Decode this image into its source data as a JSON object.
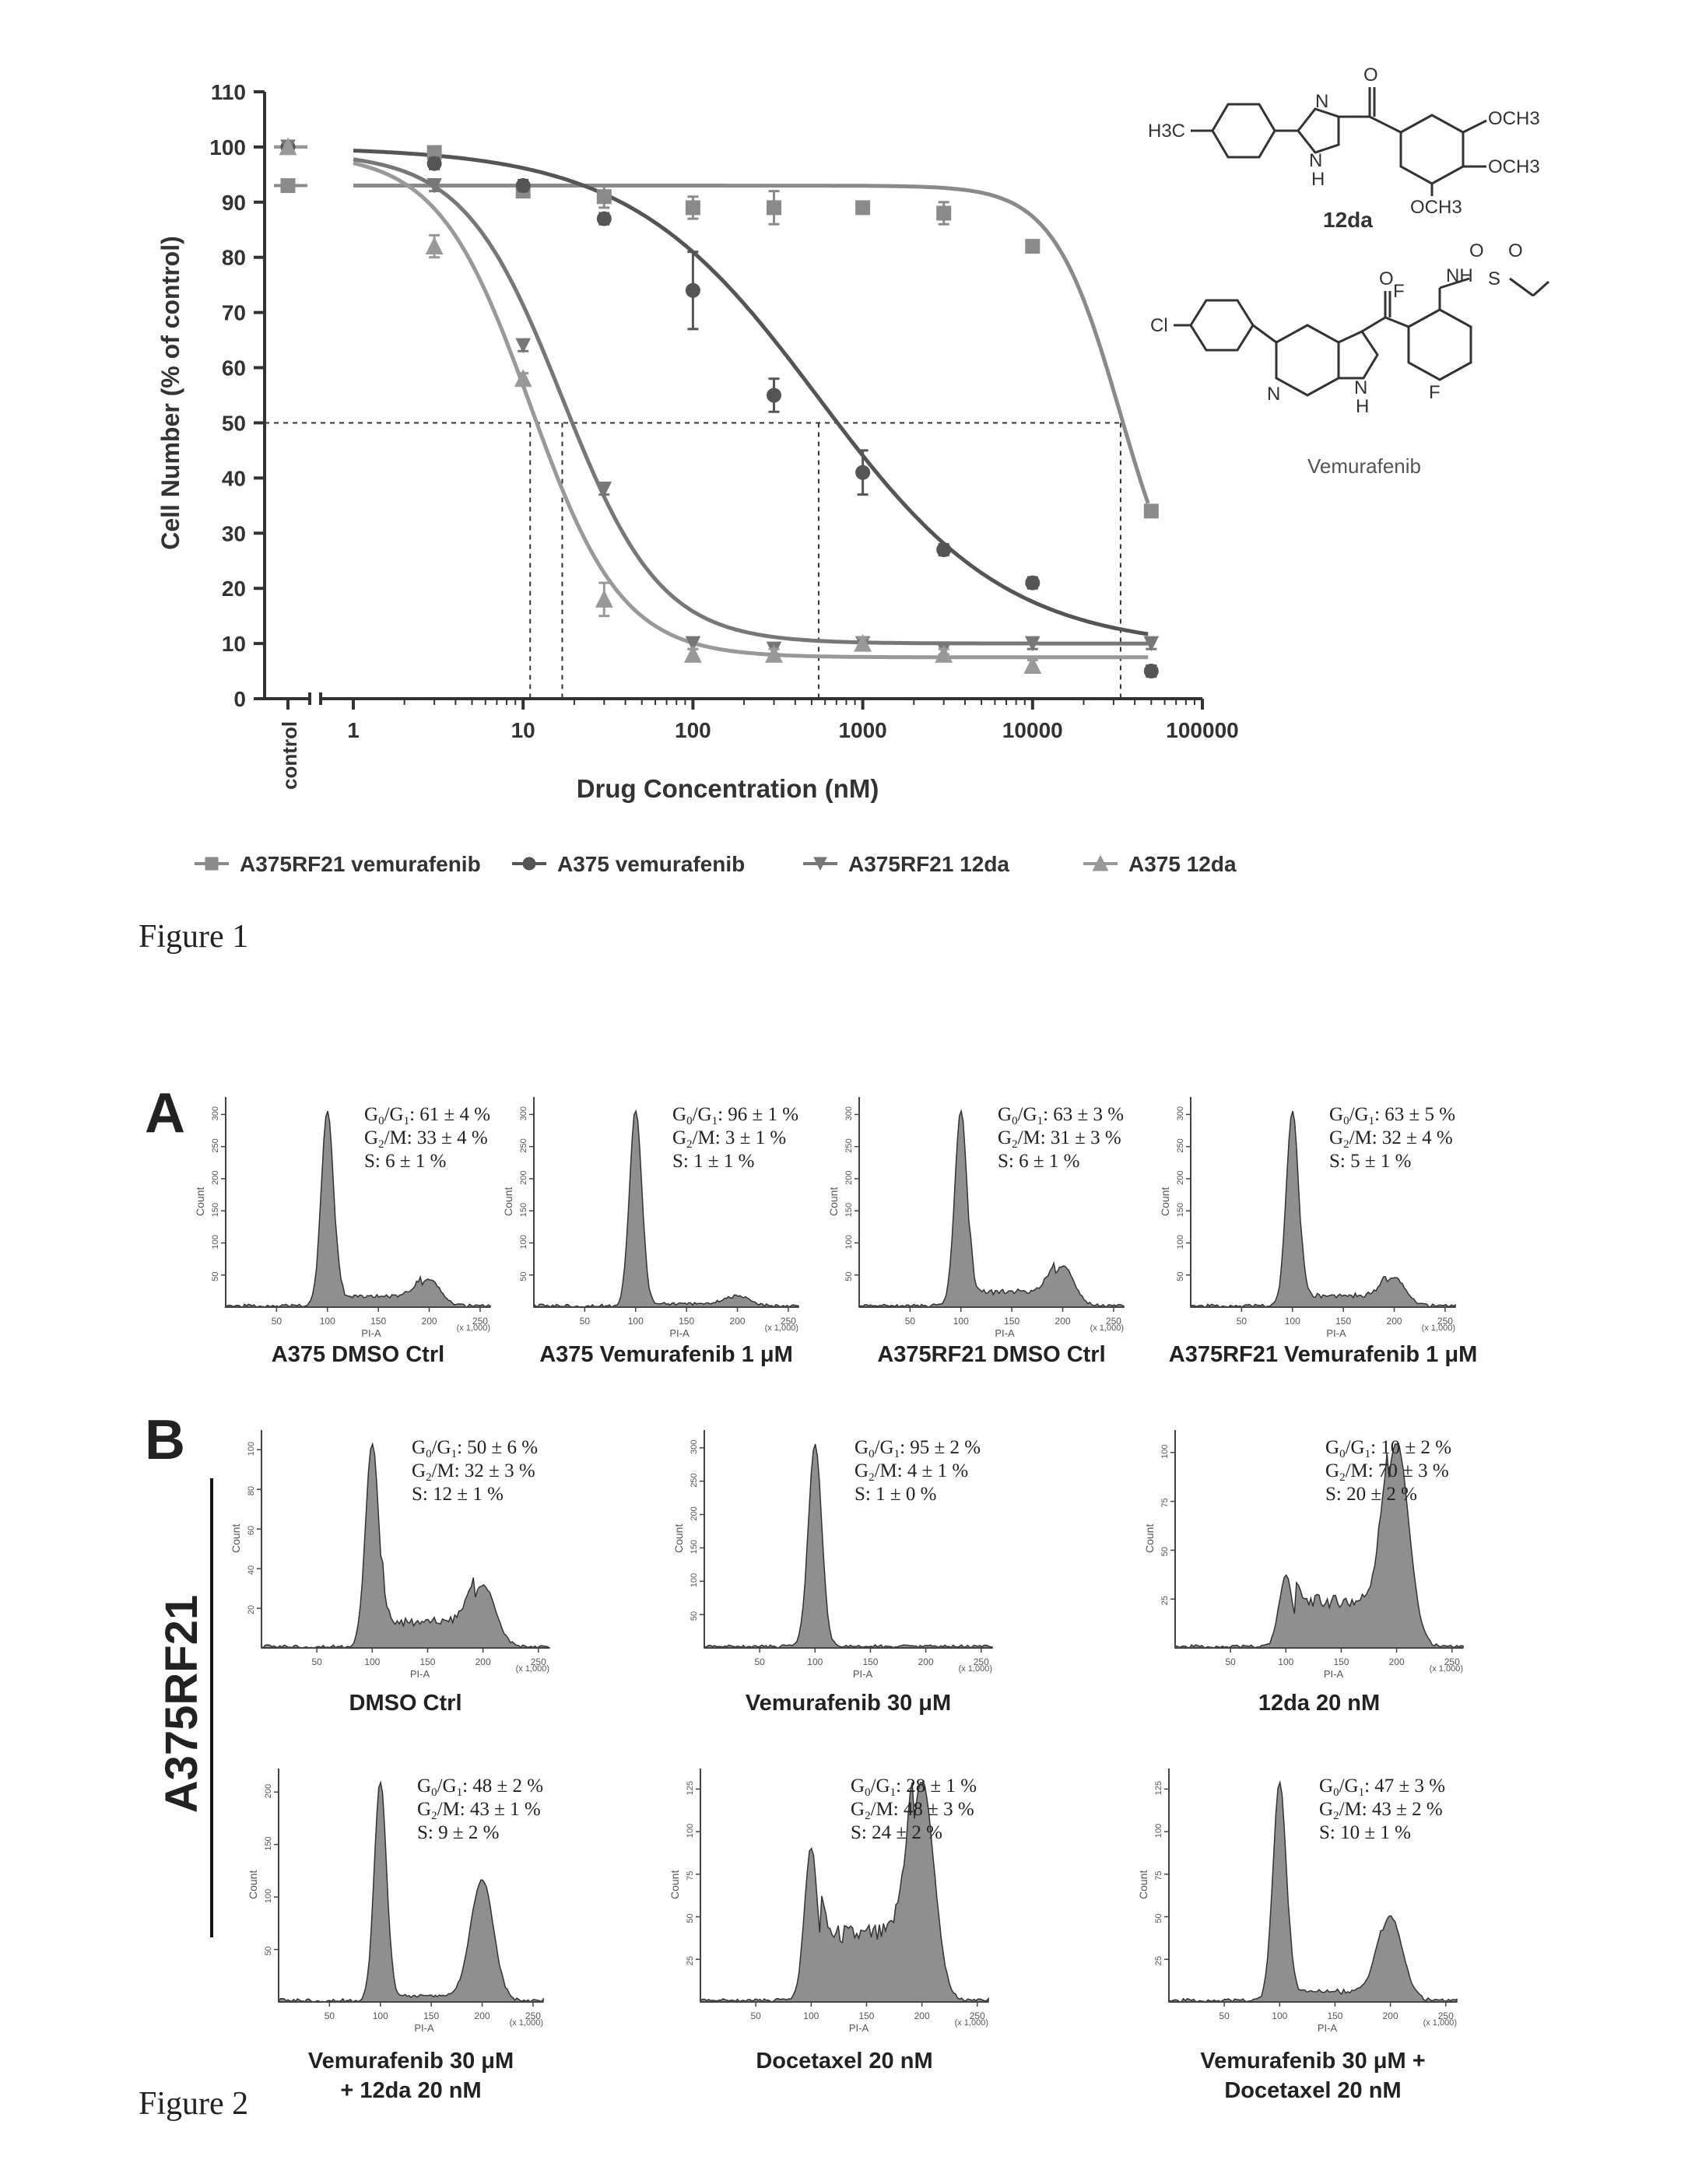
{
  "figure1": {
    "caption": "Figure 1",
    "chart_data": {
      "type": "scatter",
      "xlabel": "Drug Concentration (nM)",
      "ylabel": "Cell Number (% of control)",
      "x_scale": "log",
      "xlim": [
        0.7,
        100000
      ],
      "ylim": [
        0,
        110
      ],
      "x_control_label": "control",
      "x_ticks": [
        "1",
        "10",
        "100",
        "1000",
        "10000",
        "100000"
      ],
      "y_ticks": [
        "0",
        "10",
        "20",
        "30",
        "40",
        "50",
        "60",
        "70",
        "80",
        "90",
        "100",
        "110"
      ],
      "reference_line_y": 50,
      "ic50_markers_nM": [
        11,
        17,
        550,
        33000
      ],
      "grid": false,
      "legend_position": "bottom",
      "series": [
        {
          "name": "A375RF21 vemurafenib",
          "marker": "square",
          "color": "#8a8a8a",
          "control": 93,
          "x": [
            3,
            10,
            30,
            100,
            300,
            1000,
            3000,
            10000,
            50000
          ],
          "y": [
            99,
            92,
            91,
            89,
            89,
            89,
            88,
            82,
            34
          ],
          "err": [
            1,
            1,
            2,
            2,
            3,
            1,
            2,
            1,
            1
          ]
        },
        {
          "name": "A375 vemurafenib",
          "marker": "circle",
          "color": "#555555",
          "control": 100,
          "x": [
            3,
            10,
            30,
            100,
            300,
            1000,
            3000,
            10000,
            50000
          ],
          "y": [
            97,
            93,
            87,
            74,
            55,
            41,
            27,
            21,
            5
          ],
          "err": [
            1,
            1,
            1,
            7,
            3,
            4,
            1,
            1,
            1
          ]
        },
        {
          "name": "A375RF21 12da",
          "marker": "triangle-down",
          "color": "#777777",
          "control": 100,
          "x": [
            3,
            10,
            30,
            100,
            300,
            1000,
            3000,
            10000,
            50000
          ],
          "y": [
            93,
            64,
            38,
            10,
            9,
            10,
            9,
            10,
            10
          ],
          "err": [
            1,
            1,
            1,
            1,
            1,
            1,
            1,
            1,
            1
          ]
        },
        {
          "name": "A375 12da",
          "marker": "triangle-up",
          "color": "#999999",
          "control": 100,
          "x": [
            3,
            10,
            30,
            100,
            300,
            1000,
            3000,
            10000
          ],
          "y": [
            82,
            58,
            18,
            8,
            8,
            10,
            8,
            6
          ],
          "err": [
            2,
            1,
            3,
            1,
            1,
            1,
            1,
            1
          ]
        }
      ],
      "fit_curves": [
        {
          "series": "A375RF21 vemurafenib",
          "top": 93,
          "bottom": 10,
          "ic50": 33000,
          "hill": 2.2
        },
        {
          "series": "A375 vemurafenib",
          "top": 100,
          "bottom": 9,
          "ic50": 550,
          "hill": 0.78
        },
        {
          "series": "A375RF21 12da",
          "top": 99,
          "bottom": 10,
          "ic50": 17,
          "hill": 1.5
        },
        {
          "series": "A375 12da",
          "top": 99,
          "bottom": 7.5,
          "ic50": 11,
          "hill": 1.6
        }
      ]
    },
    "structures": [
      {
        "name": "12da",
        "labels": [
          "H3C",
          "N",
          "N",
          "H",
          "O",
          "OCH3",
          "OCH3",
          "OCH3"
        ]
      },
      {
        "name": "Vemurafenib",
        "labels": [
          "Cl",
          "N",
          "N",
          "H",
          "F",
          "F",
          "O",
          "NH",
          "S",
          "O",
          "O"
        ]
      }
    ]
  },
  "figure2": {
    "caption": "Figure 2",
    "section_labels": {
      "a": "A",
      "b": "B"
    },
    "vertical_label": "A375RF21",
    "axis": {
      "x_label": "PI-A",
      "x_unit": "(x 1,000)",
      "y_label": "Count",
      "x_ticks": [
        "50",
        "100",
        "150",
        "200",
        "250"
      ]
    },
    "panels": [
      {
        "id": "a1",
        "title": "A375 DMSO Ctrl",
        "stats": {
          "g0g1": "61 ± 4 %",
          "g2m": "33 ± 4 %",
          "s": "6 ± 1 %"
        },
        "profile": {
          "g1": 1.0,
          "g2": 0.13,
          "s": 0.05
        },
        "y_ticks": [
          "50",
          "100",
          "150",
          "200",
          "250",
          "300"
        ]
      },
      {
        "id": "a2",
        "title": "A375 Vemurafenib 1 μM",
        "stats": {
          "g0g1": "96 ± 1 %",
          "g2m": "3 ± 1 %",
          "s": "1 ± 1 %"
        },
        "profile": {
          "g1": 1.0,
          "g2": 0.05,
          "s": 0.01
        },
        "y_ticks": [
          "50",
          "100",
          "150",
          "200",
          "250",
          "300"
        ]
      },
      {
        "id": "a3",
        "title": "A375RF21 DMSO Ctrl",
        "stats": {
          "g0g1": "63 ± 3 %",
          "g2m": "31 ± 3 %",
          "s": "6 ± 1 %"
        },
        "profile": {
          "g1": 1.0,
          "g2": 0.2,
          "s": 0.07
        },
        "y_ticks": [
          "50",
          "100",
          "150",
          "200",
          "250",
          "300"
        ]
      },
      {
        "id": "a4",
        "title": "A375RF21 Vemurafenib 1 μM",
        "stats": {
          "g0g1": "63 ± 5 %",
          "g2m": "32 ± 4 %",
          "s": "5 ± 1 %"
        },
        "profile": {
          "g1": 1.0,
          "g2": 0.14,
          "s": 0.05
        },
        "y_ticks": [
          "50",
          "100",
          "150",
          "200",
          "250",
          "300"
        ]
      },
      {
        "id": "b1",
        "title": "DMSO Ctrl",
        "stats": {
          "g0g1": "50 ± 6 %",
          "g2m": "32 ± 3 %",
          "s": "12 ± 1 %"
        },
        "profile": {
          "g1": 1.0,
          "g2": 0.3,
          "s": 0.12
        },
        "y_ticks": [
          "20",
          "40",
          "60",
          "80",
          "100"
        ]
      },
      {
        "id": "b2",
        "title": "Vemurafenib 30 μM",
        "stats": {
          "g0g1": "95 ± 2 %",
          "g2m": "4 ± 1 %",
          "s": "1 ± 0 %"
        },
        "profile": {
          "g1": 1.0,
          "g2": 0.0,
          "s": 0.0
        },
        "y_ticks": [
          "50",
          "100",
          "150",
          "200",
          "250",
          "300"
        ]
      },
      {
        "id": "b3",
        "title": "12da 20 nM",
        "stats": {
          "g0g1": "10 ± 2 %",
          "g2m": "70 ± 3 %",
          "s": "20 ± 2 %"
        },
        "profile": {
          "g1": 0.35,
          "g2": 1.0,
          "s": 0.22
        },
        "y_ticks": [
          "25",
          "50",
          "75",
          "100"
        ]
      },
      {
        "id": "b4",
        "title": "Vemurafenib 30 μM",
        "title2": "+ 12da 20 nM",
        "stats": {
          "g0g1": "48 ± 2 %",
          "g2m": "43 ± 1 %",
          "s": "9 ± 2 %"
        },
        "profile": {
          "g1": 1.0,
          "g2": 0.55,
          "s": 0.02
        },
        "y_ticks": [
          "50",
          "100",
          "150",
          "200"
        ]
      },
      {
        "id": "b5",
        "title": "Docetaxel 20 nM",
        "stats": {
          "g0g1": "28 ± 1 %",
          "g2m": "48 ± 3 %",
          "s": "24 ± 2 %"
        },
        "profile": {
          "g1": 0.7,
          "g2": 1.0,
          "s": 0.3
        },
        "y_ticks": [
          "25",
          "50",
          "75",
          "100",
          "125"
        ]
      },
      {
        "id": "b6",
        "title": "Vemurafenib 30 μM +",
        "title2": "Docetaxel 20 nM",
        "stats": {
          "g0g1": "47 ± 3 %",
          "g2m": "43 ± 2 %",
          "s": "10 ± 1 %"
        },
        "profile": {
          "g1": 1.0,
          "g2": 0.38,
          "s": 0.04
        },
        "y_ticks": [
          "25",
          "50",
          "75",
          "100",
          "125"
        ]
      }
    ]
  }
}
